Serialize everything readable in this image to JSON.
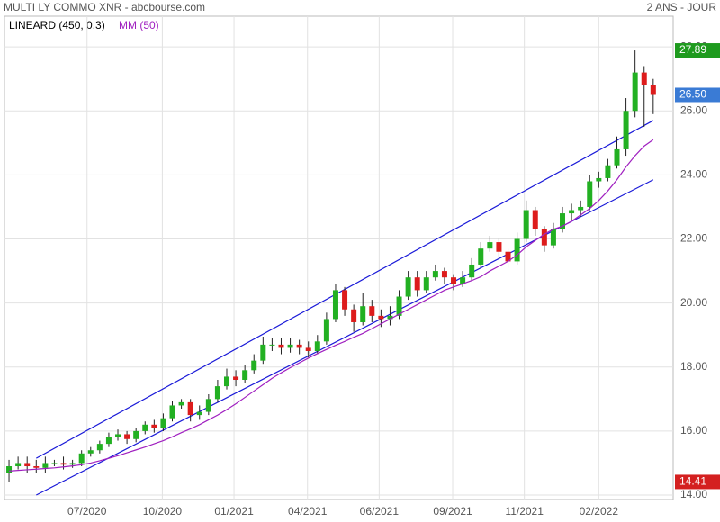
{
  "chart_data": {
    "type": "candlestick",
    "title": "MULTI LY COMMO XNR - abcbourse.com",
    "period": "2 ANS - JOUR",
    "xlim": [
      -0.5,
      73.2
    ],
    "xticks": [
      {
        "value": 8.6,
        "label": "07/2020"
      },
      {
        "value": 16.9,
        "label": "10/2020"
      },
      {
        "value": 24.8,
        "label": "01/2021"
      },
      {
        "value": 32.9,
        "label": "04/2021"
      },
      {
        "value": 40.8,
        "label": "06/2021"
      },
      {
        "value": 48.9,
        "label": "09/2021"
      },
      {
        "value": 56.8,
        "label": "11/2021"
      },
      {
        "value": 65.0,
        "label": "02/2022"
      }
    ],
    "ylim": [
      13.86,
      28.96
    ],
    "yticks": [
      {
        "value": 14,
        "label": "14.00"
      },
      {
        "value": 16,
        "label": "16.00"
      },
      {
        "value": 18,
        "label": "18.00"
      },
      {
        "value": 20,
        "label": "20.00"
      },
      {
        "value": 22,
        "label": "22.00"
      },
      {
        "value": 24,
        "label": "24.00"
      },
      {
        "value": 26,
        "label": "26.00"
      },
      {
        "value": 28,
        "label": "28.00"
      }
    ],
    "grid": true,
    "up_color": "#22b022",
    "down_color": "#dd1c1c",
    "open": [
      14.7,
      14.9,
      15.0,
      14.9,
      14.85,
      15.0,
      15.0,
      14.95,
      15.0,
      15.3,
      15.4,
      15.6,
      15.8,
      15.9,
      15.75,
      16.0,
      16.2,
      16.1,
      16.4,
      16.8,
      16.9,
      16.5,
      16.6,
      17.0,
      17.4,
      17.7,
      17.6,
      17.9,
      18.2,
      18.7,
      18.7,
      18.6,
      18.7,
      18.6,
      18.5,
      18.8,
      19.5,
      20.4,
      19.8,
      19.4,
      19.9,
      19.6,
      19.5,
      19.6,
      20.2,
      20.8,
      20.4,
      20.8,
      21.0,
      20.8,
      20.6,
      20.8,
      21.2,
      21.7,
      21.9,
      21.6,
      21.3,
      22.0,
      22.9,
      22.3,
      21.8,
      22.3,
      22.8,
      22.9,
      23.0,
      23.8,
      23.9,
      24.3,
      24.8,
      26.0,
      27.2,
      26.8
    ],
    "high": [
      15.1,
      15.2,
      15.2,
      15.1,
      15.2,
      15.1,
      15.2,
      15.1,
      15.4,
      15.5,
      15.7,
      15.95,
      16.05,
      16.0,
      16.1,
      16.3,
      16.35,
      16.55,
      16.95,
      17.0,
      17.0,
      16.8,
      17.15,
      17.6,
      17.95,
      17.9,
      18.05,
      18.4,
      18.95,
      18.9,
      18.9,
      18.9,
      18.85,
      18.8,
      19.0,
      19.7,
      20.6,
      20.5,
      19.95,
      20.3,
      20.1,
      19.8,
      19.9,
      20.4,
      21.0,
      21.0,
      21.0,
      21.2,
      21.1,
      20.9,
      21.0,
      21.4,
      21.9,
      22.1,
      22.0,
      21.7,
      22.2,
      23.2,
      23.0,
      22.4,
      22.5,
      23.0,
      23.1,
      23.2,
      24.0,
      24.1,
      24.5,
      25.2,
      26.4,
      27.89,
      27.4,
      27.0
    ],
    "low": [
      14.41,
      14.8,
      14.7,
      14.7,
      14.7,
      14.9,
      14.8,
      14.85,
      14.9,
      15.2,
      15.3,
      15.5,
      15.7,
      15.6,
      15.65,
      15.9,
      15.95,
      16.0,
      16.3,
      16.7,
      16.3,
      16.35,
      16.5,
      16.9,
      17.3,
      17.4,
      17.5,
      17.8,
      18.1,
      18.5,
      18.4,
      18.45,
      18.4,
      18.3,
      18.4,
      18.7,
      19.4,
      19.6,
      19.1,
      19.3,
      19.4,
      19.25,
      19.3,
      19.5,
      20.1,
      20.2,
      20.3,
      20.7,
      20.6,
      20.4,
      20.5,
      20.7,
      21.1,
      21.6,
      21.4,
      21.1,
      21.2,
      21.9,
      22.1,
      21.6,
      21.7,
      22.2,
      22.6,
      22.7,
      22.9,
      23.6,
      23.8,
      24.2,
      24.6,
      25.8,
      25.5,
      25.9
    ],
    "close": [
      14.9,
      15.0,
      14.9,
      14.85,
      15.0,
      15.0,
      14.95,
      15.0,
      15.3,
      15.4,
      15.6,
      15.8,
      15.9,
      15.75,
      16.0,
      16.2,
      16.1,
      16.4,
      16.8,
      16.9,
      16.5,
      16.6,
      17.0,
      17.4,
      17.7,
      17.6,
      17.9,
      18.2,
      18.7,
      18.7,
      18.6,
      18.7,
      18.6,
      18.5,
      18.8,
      19.5,
      20.4,
      19.8,
      19.4,
      19.9,
      19.6,
      19.5,
      19.6,
      20.2,
      20.8,
      20.4,
      20.8,
      21.0,
      20.8,
      20.6,
      20.8,
      21.2,
      21.7,
      21.9,
      21.6,
      21.3,
      22.0,
      22.9,
      22.3,
      21.8,
      22.3,
      22.8,
      22.9,
      23.0,
      23.8,
      23.9,
      24.3,
      24.8,
      26.0,
      27.2,
      26.8,
      26.5
    ],
    "channel": {
      "name": "LINEARD (450, 0.3)",
      "color": "#1a1ad8",
      "x": [
        3,
        71
      ],
      "upper": [
        15.15,
        25.7
      ],
      "lower": [
        14.0,
        23.85
      ]
    },
    "ma": {
      "name": "MM (50)",
      "color": "#a020c0",
      "values": [
        14.75,
        14.77,
        14.79,
        14.81,
        14.83,
        14.85,
        14.88,
        14.91,
        14.95,
        15.0,
        15.07,
        15.15,
        15.23,
        15.32,
        15.41,
        15.5,
        15.6,
        15.7,
        15.82,
        15.95,
        16.07,
        16.2,
        16.35,
        16.5,
        16.67,
        16.85,
        17.05,
        17.25,
        17.45,
        17.65,
        17.82,
        17.98,
        18.13,
        18.28,
        18.42,
        18.55,
        18.68,
        18.8,
        18.93,
        19.05,
        19.2,
        19.35,
        19.5,
        19.65,
        19.8,
        19.95,
        20.1,
        20.25,
        20.4,
        20.5,
        20.6,
        20.7,
        20.82,
        21.0,
        21.15,
        21.3,
        21.5,
        21.75,
        21.95,
        22.15,
        22.3,
        22.4,
        22.55,
        22.75,
        22.95,
        23.2,
        23.5,
        23.85,
        24.25,
        24.6,
        24.9,
        25.1
      ]
    },
    "markers": [
      {
        "value": 27.89,
        "label": "27.89",
        "color": "#1e9a1e"
      },
      {
        "value": 26.5,
        "label": "26.50",
        "color": "#3a7bd5"
      },
      {
        "value": 14.41,
        "label": "14.41",
        "color": "#d42020"
      }
    ]
  }
}
